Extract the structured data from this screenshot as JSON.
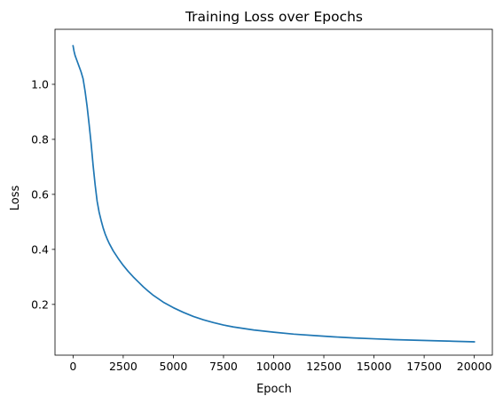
{
  "chart_data": {
    "type": "line",
    "title": "Training Loss over Epochs",
    "xlabel": "Epoch",
    "ylabel": "Loss",
    "xlim": [
      -900,
      20900
    ],
    "ylim": [
      0.0155,
      1.2
    ],
    "grid": false,
    "legend": null,
    "x_ticks": [
      0,
      2500,
      5000,
      7500,
      10000,
      12500,
      15000,
      17500,
      20000
    ],
    "y_ticks": [
      0.2,
      0.4,
      0.6,
      0.8,
      1.0
    ],
    "series": [
      {
        "color": "#1f77b4",
        "points": [
          [
            0,
            1.14
          ],
          [
            50,
            1.12
          ],
          [
            100,
            1.105
          ],
          [
            200,
            1.085
          ],
          [
            300,
            1.065
          ],
          [
            400,
            1.045
          ],
          [
            500,
            1.02
          ],
          [
            600,
            0.975
          ],
          [
            700,
            0.92
          ],
          [
            800,
            0.855
          ],
          [
            900,
            0.785
          ],
          [
            1000,
            0.705
          ],
          [
            1100,
            0.635
          ],
          [
            1200,
            0.575
          ],
          [
            1300,
            0.535
          ],
          [
            1400,
            0.505
          ],
          [
            1500,
            0.478
          ],
          [
            1600,
            0.456
          ],
          [
            1700,
            0.438
          ],
          [
            1800,
            0.422
          ],
          [
            2000,
            0.395
          ],
          [
            2250,
            0.367
          ],
          [
            2500,
            0.342
          ],
          [
            2750,
            0.32
          ],
          [
            3000,
            0.3
          ],
          [
            3250,
            0.282
          ],
          [
            3500,
            0.264
          ],
          [
            3750,
            0.248
          ],
          [
            4000,
            0.233
          ],
          [
            4500,
            0.208
          ],
          [
            5000,
            0.188
          ],
          [
            5500,
            0.171
          ],
          [
            6000,
            0.156
          ],
          [
            6500,
            0.144
          ],
          [
            7000,
            0.134
          ],
          [
            7500,
            0.125
          ],
          [
            8000,
            0.118
          ],
          [
            9000,
            0.107
          ],
          [
            10000,
            0.099
          ],
          [
            11000,
            0.092
          ],
          [
            12000,
            0.087
          ],
          [
            13000,
            0.082
          ],
          [
            14000,
            0.078
          ],
          [
            15000,
            0.075
          ],
          [
            16000,
            0.072
          ],
          [
            17000,
            0.07
          ],
          [
            18000,
            0.068
          ],
          [
            19000,
            0.066
          ],
          [
            20000,
            0.064
          ]
        ]
      }
    ]
  }
}
